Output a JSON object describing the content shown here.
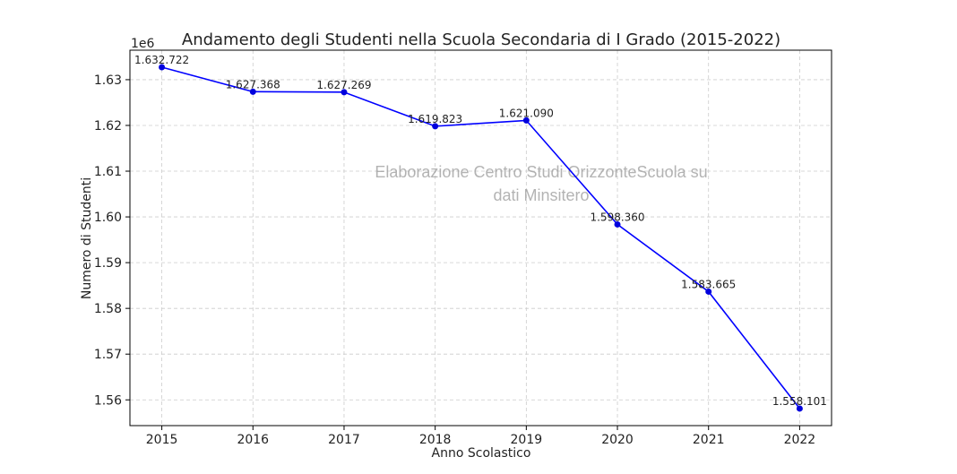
{
  "chart_data": {
    "type": "line",
    "title": "Andamento degli Studenti nella Scuola Secondaria di I Grado (2015-2022)",
    "xlabel": "Anno Scolastico",
    "ylabel": "Numero di Studenti",
    "y_offset_label": "1e6",
    "x": [
      2015,
      2016,
      2017,
      2018,
      2019,
      2020,
      2021,
      2022
    ],
    "values": [
      1632722,
      1627368,
      1627269,
      1619823,
      1621090,
      1598360,
      1583665,
      1558101
    ],
    "data_labels": [
      "1.632.722",
      "1.627.368",
      "1.627.269",
      "1.619.823",
      "1.621.090",
      "1.598.360",
      "1.583.665",
      "1.558.101"
    ],
    "x_ticks": [
      "2015",
      "2016",
      "2017",
      "2018",
      "2019",
      "2020",
      "2021",
      "2022"
    ],
    "y_ticks": [
      1.56,
      1.57,
      1.58,
      1.59,
      1.6,
      1.61,
      1.62,
      1.63
    ],
    "y_tick_labels": [
      "1.56",
      "1.57",
      "1.58",
      "1.59",
      "1.60",
      "1.61",
      "1.62",
      "1.63"
    ],
    "xlim": [
      2014.65,
      2022.35
    ],
    "ylim": [
      1554370,
      1636450
    ],
    "grid": true,
    "line_color": "#0000ff",
    "marker_color": "#0000dd",
    "watermark": [
      "Elaborazione Centro Studi OrizzonteScuola su",
      "dati Minsitero"
    ]
  }
}
